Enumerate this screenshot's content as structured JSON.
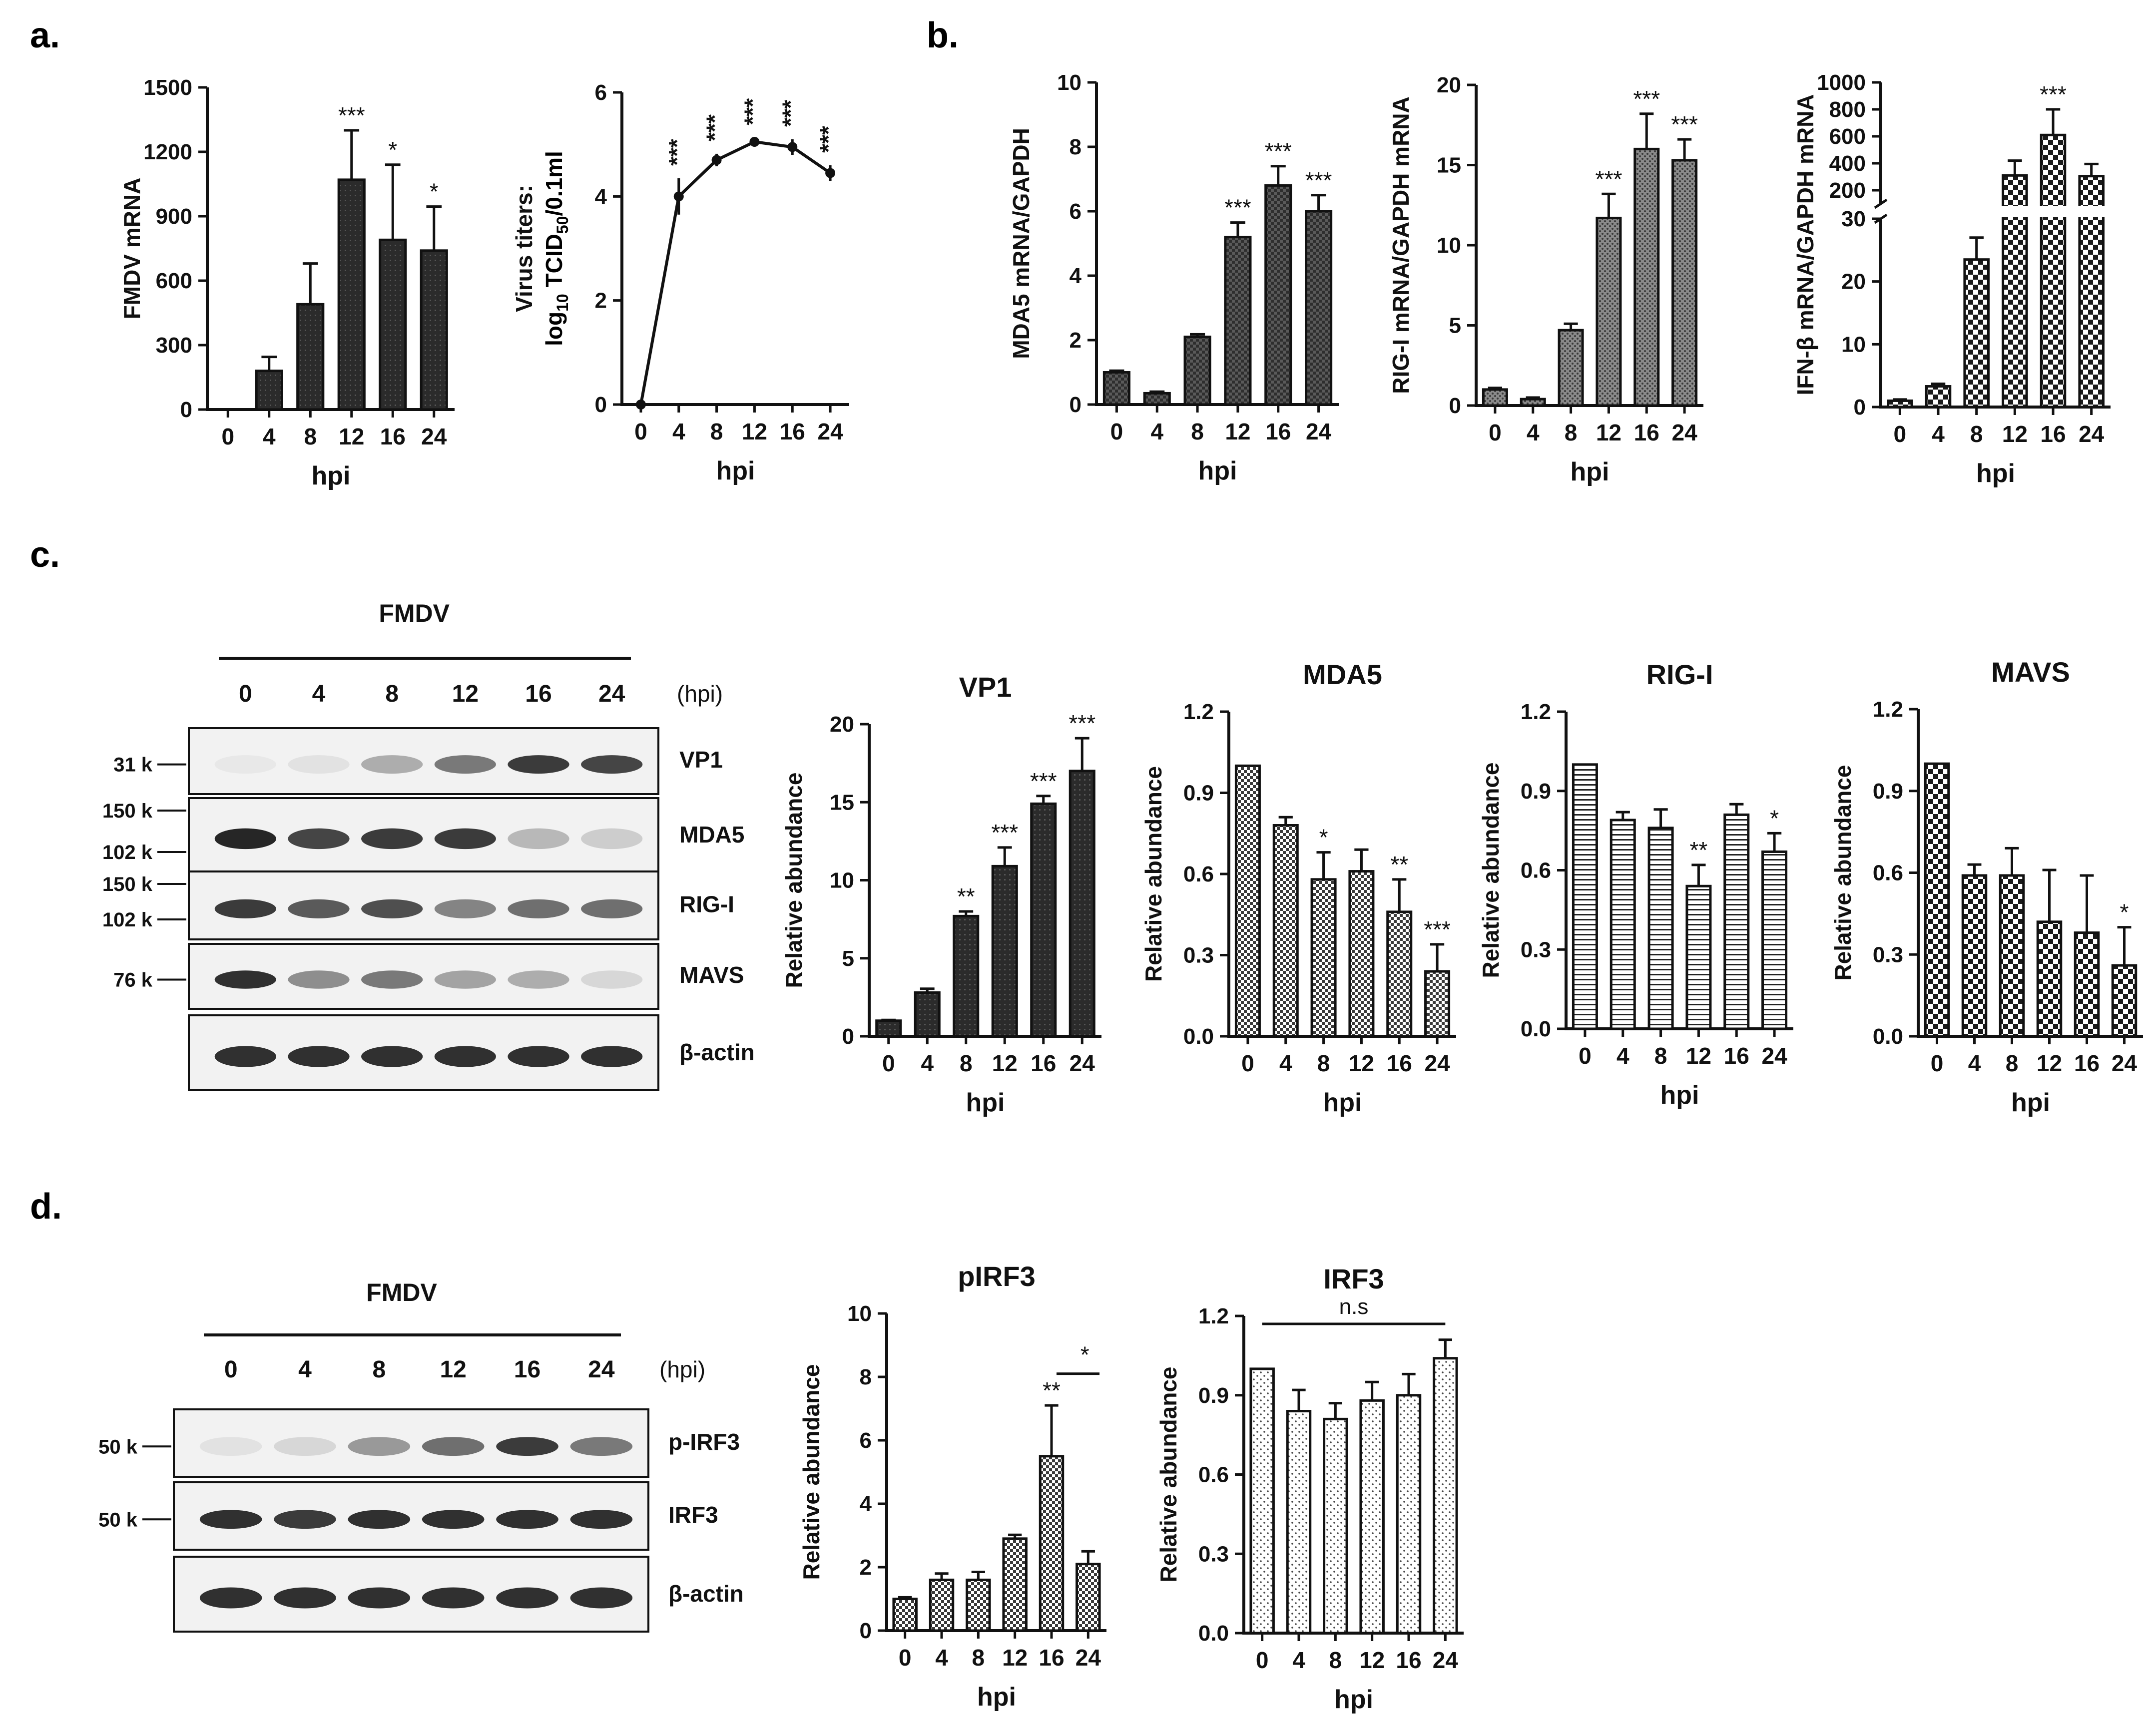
{
  "panels": {
    "a": "a.",
    "b": "b.",
    "c": "c.",
    "d": "d."
  },
  "chart_data": [
    {
      "id": "a1",
      "type": "bar",
      "pattern": "dark",
      "title": "",
      "xlabel": "hpi",
      "ylabel": "FMDV mRNA",
      "categories": [
        "0",
        "4",
        "8",
        "12",
        "16",
        "24"
      ],
      "values": [
        0,
        180,
        490,
        1070,
        790,
        740
      ],
      "errors": [
        0,
        65,
        190,
        230,
        350,
        205
      ],
      "sig": [
        "",
        "",
        "",
        "***",
        "*",
        "*"
      ],
      "ylim": [
        0,
        1500
      ],
      "yticks": [
        "0",
        "300",
        "600",
        "900",
        "1200",
        "1500"
      ]
    },
    {
      "id": "a2",
      "type": "line",
      "title": "",
      "xlabel": "hpi",
      "ylabel": "Virus titers:",
      "ylabel2_prefix": "log",
      "ylabel2_sub1": "10",
      "ylabel2_mid": " TCID",
      "ylabel2_sub2": "50",
      "ylabel2_suffix": "/0.1ml",
      "categories": [
        "0",
        "4",
        "8",
        "12",
        "16",
        "24"
      ],
      "values": [
        0,
        4.0,
        4.7,
        5.05,
        4.95,
        4.45
      ],
      "errors": [
        0,
        0.35,
        0.12,
        0.08,
        0.15,
        0.15
      ],
      "sig": [
        "",
        "***",
        "***",
        "***",
        "***",
        "***"
      ],
      "ylim": [
        0,
        6
      ],
      "yticks": [
        "0",
        "2",
        "4",
        "6"
      ]
    },
    {
      "id": "b1",
      "type": "bar",
      "pattern": "medium",
      "title": "",
      "xlabel": "hpi",
      "ylabel": "MDA5 mRNA/GAPDH",
      "categories": [
        "0",
        "4",
        "8",
        "12",
        "16",
        "24"
      ],
      "values": [
        1.0,
        0.35,
        2.1,
        5.2,
        6.8,
        6.0
      ],
      "errors": [
        0.05,
        0.05,
        0.08,
        0.45,
        0.6,
        0.5
      ],
      "sig": [
        "",
        "",
        "",
        "***",
        "***",
        "***"
      ],
      "ylim": [
        0,
        10
      ],
      "yticks": [
        "0",
        "2",
        "4",
        "6",
        "8",
        "10"
      ]
    },
    {
      "id": "b2",
      "type": "bar",
      "pattern": "dots",
      "title": "",
      "xlabel": "hpi",
      "ylabel": "RIG-I mRNA/GAPDH mRNA",
      "categories": [
        "0",
        "4",
        "8",
        "12",
        "16",
        "24"
      ],
      "values": [
        1.0,
        0.4,
        4.7,
        11.7,
        16.0,
        15.3
      ],
      "errors": [
        0.1,
        0.1,
        0.4,
        1.5,
        2.2,
        1.3
      ],
      "sig": [
        "",
        "",
        "",
        "***",
        "***",
        "***"
      ],
      "ylim": [
        0,
        20
      ],
      "yticks": [
        "0",
        "5",
        "10",
        "15",
        "20"
      ]
    },
    {
      "id": "b3",
      "type": "bar_broken",
      "pattern": "checker",
      "title": "",
      "xlabel": "hpi",
      "ylabel": "IFN-β mRNA/GAPDH mRNA",
      "categories": [
        "0",
        "4",
        "8",
        "12",
        "16",
        "24"
      ],
      "values": [
        1.0,
        3.3,
        23.5,
        310,
        610,
        305
      ],
      "errors": [
        0.2,
        0.4,
        3.5,
        110,
        190,
        90
      ],
      "sig": [
        "",
        "",
        "",
        "",
        "***",
        ""
      ],
      "lower_ylim": [
        0,
        30
      ],
      "lower_yticks": [
        "0",
        "10",
        "20",
        "30"
      ],
      "upper_ylim": [
        100,
        1000
      ],
      "upper_yticks": [
        "200",
        "400",
        "600",
        "800",
        "1000"
      ]
    },
    {
      "id": "c1",
      "type": "bar",
      "pattern": "dark",
      "title": "VP1",
      "xlabel": "hpi",
      "ylabel": "Relative abundance",
      "categories": [
        "0",
        "4",
        "8",
        "12",
        "16",
        "24"
      ],
      "values": [
        1.0,
        2.8,
        7.7,
        10.9,
        14.9,
        17.0
      ],
      "errors": [
        0.05,
        0.25,
        0.3,
        1.2,
        0.5,
        2.1
      ],
      "sig": [
        "",
        "",
        "**",
        "***",
        "***",
        "***"
      ],
      "ylim": [
        0,
        20
      ],
      "yticks": [
        "0",
        "5",
        "10",
        "15",
        "20"
      ]
    },
    {
      "id": "c2",
      "type": "bar",
      "pattern": "checker_small",
      "title": "MDA5",
      "xlabel": "hpi",
      "ylabel": "Relative abundance",
      "categories": [
        "0",
        "4",
        "8",
        "12",
        "16",
        "24"
      ],
      "values": [
        1.0,
        0.78,
        0.58,
        0.61,
        0.46,
        0.24
      ],
      "errors": [
        0,
        0.03,
        0.1,
        0.08,
        0.12,
        0.1
      ],
      "sig": [
        "",
        "",
        "*",
        "",
        "**",
        "***"
      ],
      "ylim": [
        0,
        1.2
      ],
      "yticks": [
        "0.0",
        "0.3",
        "0.6",
        "0.9",
        "1.2"
      ]
    },
    {
      "id": "c3",
      "type": "bar",
      "pattern": "hlines",
      "title": "RIG-I",
      "xlabel": "hpi",
      "ylabel": "Relative abundance",
      "categories": [
        "0",
        "4",
        "8",
        "12",
        "16",
        "24"
      ],
      "values": [
        1.0,
        0.79,
        0.76,
        0.54,
        0.81,
        0.67
      ],
      "errors": [
        0,
        0.03,
        0.07,
        0.08,
        0.04,
        0.07
      ],
      "sig": [
        "",
        "",
        "",
        "**",
        "",
        "*"
      ],
      "ylim": [
        0,
        1.2
      ],
      "yticks": [
        "0.0",
        "0.3",
        "0.6",
        "0.9",
        "1.2"
      ]
    },
    {
      "id": "c4",
      "type": "bar",
      "pattern": "checker",
      "title": "MAVS",
      "xlabel": "hpi",
      "ylabel": "Relative abundance",
      "categories": [
        "0",
        "4",
        "8",
        "12",
        "16",
        "24"
      ],
      "values": [
        1.0,
        0.59,
        0.59,
        0.42,
        0.38,
        0.26
      ],
      "errors": [
        0,
        0.04,
        0.1,
        0.19,
        0.21,
        0.14
      ],
      "sig": [
        "",
        "",
        "",
        "",
        "",
        "*"
      ],
      "ylim": [
        0,
        1.2
      ],
      "yticks": [
        "0.0",
        "0.3",
        "0.6",
        "0.9",
        "1.2"
      ]
    },
    {
      "id": "d1",
      "type": "bar",
      "pattern": "checker_small",
      "title": "pIRF3",
      "xlabel": "hpi",
      "ylabel": "Relative abundance",
      "categories": [
        "0",
        "4",
        "8",
        "12",
        "16",
        "24"
      ],
      "values": [
        1.0,
        1.6,
        1.6,
        2.9,
        5.5,
        2.1
      ],
      "errors": [
        0.05,
        0.2,
        0.25,
        0.12,
        1.6,
        0.4
      ],
      "sig": [
        "",
        "",
        "",
        "",
        "**",
        ""
      ],
      "bracket": {
        "from": 4,
        "to": 5,
        "label": "*"
      },
      "ylim": [
        0,
        10
      ],
      "yticks": [
        "0",
        "2",
        "4",
        "6",
        "8",
        "10"
      ]
    },
    {
      "id": "d2",
      "type": "bar",
      "pattern": "sparse_dots",
      "title": "IRF3",
      "xlabel": "hpi",
      "ylabel": "Relative abundance",
      "categories": [
        "0",
        "4",
        "8",
        "12",
        "16",
        "24"
      ],
      "values": [
        1.0,
        0.84,
        0.81,
        0.88,
        0.9,
        1.04
      ],
      "errors": [
        0,
        0.08,
        0.06,
        0.07,
        0.08,
        0.07
      ],
      "sig": [
        "",
        "",
        "",
        "",
        "",
        ""
      ],
      "bracket_all": "n.s",
      "ylim": [
        0,
        1.2
      ],
      "yticks": [
        "0.0",
        "0.3",
        "0.6",
        "0.9",
        "1.2"
      ]
    }
  ],
  "blots": {
    "c": {
      "group": "FMDV",
      "lanes": [
        "0",
        "4",
        "8",
        "12",
        "16",
        "24"
      ],
      "unit": "(hpi)",
      "rows": [
        {
          "label": "VP1",
          "markers": [
            "31 k"
          ],
          "intensity": [
            0.02,
            0.05,
            0.3,
            0.55,
            0.85,
            0.8
          ]
        },
        {
          "label": "MDA5",
          "markers": [
            "150 k",
            "102 k"
          ],
          "intensity": [
            0.95,
            0.8,
            0.85,
            0.85,
            0.25,
            0.15
          ]
        },
        {
          "label": "RIG-I",
          "markers": [
            "150 k",
            "102 k"
          ],
          "intensity": [
            0.85,
            0.7,
            0.75,
            0.5,
            0.6,
            0.6
          ]
        },
        {
          "label": "MAVS",
          "markers": [
            "76 k"
          ],
          "intensity": [
            0.9,
            0.45,
            0.55,
            0.35,
            0.3,
            0.1
          ]
        },
        {
          "label": "β-actin",
          "markers": [],
          "intensity": [
            0.9,
            0.9,
            0.9,
            0.9,
            0.9,
            0.9
          ]
        }
      ]
    },
    "d": {
      "group": "FMDV",
      "lanes": [
        "0",
        "4",
        "8",
        "12",
        "16",
        "24"
      ],
      "unit": "(hpi)",
      "rows": [
        {
          "label": "p-IRF3",
          "markers": [
            "50 k"
          ],
          "intensity": [
            0.05,
            0.1,
            0.4,
            0.6,
            0.85,
            0.55
          ]
        },
        {
          "label": "IRF3",
          "markers": [
            "50 k"
          ],
          "intensity": [
            0.9,
            0.85,
            0.9,
            0.9,
            0.9,
            0.9
          ]
        },
        {
          "label": "β-actin",
          "markers": [],
          "intensity": [
            0.9,
            0.9,
            0.9,
            0.9,
            0.9,
            0.9
          ]
        }
      ]
    }
  }
}
